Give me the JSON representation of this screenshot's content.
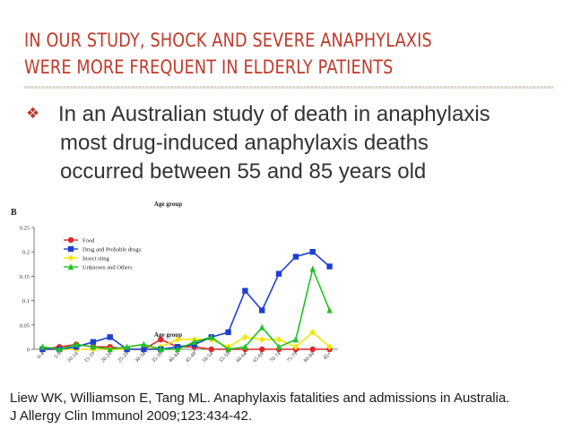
{
  "slide": {
    "title_line1": "IN OUR STUDY, SHOCK AND SEVERE ANAPHYLAXIS",
    "title_line2": "WERE MORE FREQUENT IN ELDERLY PATIENTS",
    "bullet_icon": "box-icon",
    "bullet_line1": "In an Australian study of death in anaphylaxis",
    "bullet_line2": "most drug-induced anaphylaxis deaths",
    "bullet_line3": "occurred between 55 and 85 years old",
    "citation_line1": "Liew WK, Williamson E, Tang ML. Anaphylaxis fatalities and admissions in Australia.",
    "citation_line2": "J Allergy Clin Immunol 2009;123:434-42.",
    "accent_color": "#c0392b"
  },
  "chart_data": {
    "type": "line",
    "panel_label": "B",
    "title": "Age group",
    "xlabel": "Age group",
    "ylabel": "",
    "ylim": [
      0,
      0.25
    ],
    "yticks": [
      "0",
      "0.05",
      "0.1",
      "0.15",
      "0.2",
      "0.25"
    ],
    "grid": false,
    "legend_position": "top-left",
    "categories": [
      "0-4",
      "5-9",
      "10-14",
      "15-19",
      "20-24",
      "25-29",
      "30-34",
      "35-39",
      "40-44",
      "45-49",
      "50-54",
      "55-59",
      "60-64",
      "65-69",
      "70-74",
      "75-79",
      "80-84",
      "85+"
    ],
    "series": [
      {
        "name": "Food",
        "color": "#e0262b",
        "marker": "circle",
        "values": [
          0,
          0.005,
          0.01,
          0.005,
          0.005,
          0,
          0,
          0.02,
          0.005,
          0.005,
          0,
          0,
          0,
          0,
          0,
          0,
          0,
          0
        ]
      },
      {
        "name": "Drug and Probable drugs",
        "color": "#1f3fd1",
        "marker": "square",
        "values": [
          0,
          0,
          0.005,
          0.015,
          0.025,
          0,
          0,
          0,
          0.005,
          0.01,
          0.025,
          0.035,
          0.12,
          0.08,
          0.155,
          0.19,
          0.2,
          0.17
        ]
      },
      {
        "name": "Insect sting",
        "color": "#f5e600",
        "marker": "diamond",
        "values": [
          0,
          0,
          0,
          0,
          0,
          0,
          0,
          0.005,
          0.02,
          0.02,
          0.02,
          0.005,
          0.025,
          0.02,
          0.02,
          0.005,
          0.035,
          0.005
        ]
      },
      {
        "name": "Unknown and Others",
        "color": "#1fc21f",
        "marker": "triangle",
        "values": [
          0.005,
          0,
          0.01,
          0.005,
          0,
          0.005,
          0.01,
          0,
          0,
          0.015,
          0.025,
          0,
          0.005,
          0.045,
          0.005,
          0.02,
          0.165,
          0.08
        ]
      }
    ]
  }
}
